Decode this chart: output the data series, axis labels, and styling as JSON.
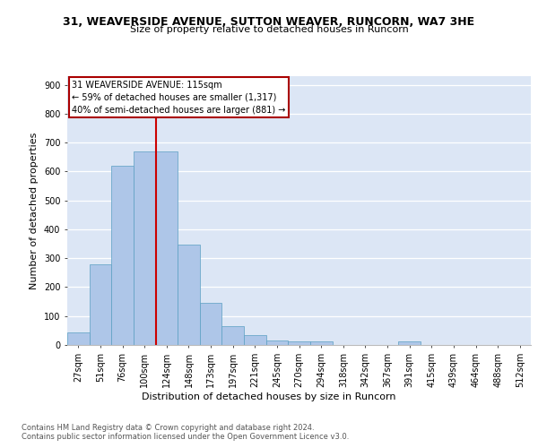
{
  "title_line1": "31, WEAVERSIDE AVENUE, SUTTON WEAVER, RUNCORN, WA7 3HE",
  "title_line2": "Size of property relative to detached houses in Runcorn",
  "xlabel": "Distribution of detached houses by size in Runcorn",
  "ylabel": "Number of detached properties",
  "footer_line1": "Contains HM Land Registry data © Crown copyright and database right 2024.",
  "footer_line2": "Contains public sector information licensed under the Open Government Licence v3.0.",
  "annotation_line1": "31 WEAVERSIDE AVENUE: 115sqm",
  "annotation_line2": "← 59% of detached houses are smaller (1,317)",
  "annotation_line3": "40% of semi-detached houses are larger (881) →",
  "bar_labels": [
    "27sqm",
    "51sqm",
    "76sqm",
    "100sqm",
    "124sqm",
    "148sqm",
    "173sqm",
    "197sqm",
    "221sqm",
    "245sqm",
    "270sqm",
    "294sqm",
    "318sqm",
    "342sqm",
    "367sqm",
    "391sqm",
    "415sqm",
    "439sqm",
    "464sqm",
    "488sqm",
    "512sqm"
  ],
  "bar_values": [
    44,
    280,
    621,
    671,
    671,
    347,
    147,
    65,
    33,
    15,
    11,
    11,
    0,
    0,
    0,
    11,
    0,
    0,
    0,
    0,
    0
  ],
  "bar_color": "#aec6e8",
  "bar_edge_color": "#5a9fc2",
  "property_line_index": 3.5,
  "ylim": [
    0,
    930
  ],
  "yticks": [
    0,
    100,
    200,
    300,
    400,
    500,
    600,
    700,
    800,
    900
  ],
  "background_color": "#dce6f5",
  "annotation_box_edgecolor": "#aa0000",
  "property_line_color": "#cc0000",
  "title1_fontsize": 9,
  "title2_fontsize": 8,
  "ylabel_fontsize": 8,
  "xlabel_fontsize": 8,
  "tick_fontsize": 7,
  "footer_fontsize": 6,
  "annotation_fontsize": 7
}
